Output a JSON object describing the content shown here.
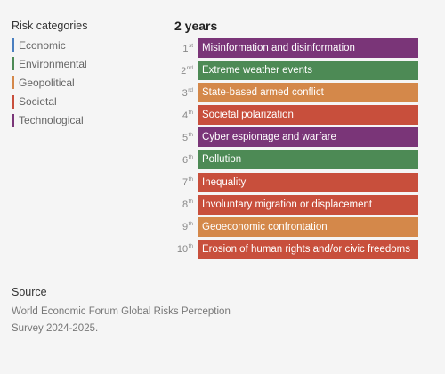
{
  "legend": {
    "title": "Risk categories",
    "items": [
      {
        "label": "Economic",
        "color": "#4a7fc0"
      },
      {
        "label": "Environmental",
        "color": "#4d8a55"
      },
      {
        "label": "Geopolitical",
        "color": "#d4884a"
      },
      {
        "label": "Societal",
        "color": "#c84f3c"
      },
      {
        "label": "Technological",
        "color": "#7a3578"
      }
    ]
  },
  "chart_data": {
    "type": "table",
    "title": "2 years",
    "rows": [
      {
        "rank": "1",
        "suffix": "st",
        "label": "Misinformation and disinformation",
        "category": "Technological"
      },
      {
        "rank": "2",
        "suffix": "nd",
        "label": "Extreme weather events",
        "category": "Environmental"
      },
      {
        "rank": "3",
        "suffix": "rd",
        "label": "State-based armed conflict",
        "category": "Geopolitical"
      },
      {
        "rank": "4",
        "suffix": "th",
        "label": "Societal polarization",
        "category": "Societal"
      },
      {
        "rank": "5",
        "suffix": "th",
        "label": "Cyber espionage and warfare",
        "category": "Technological"
      },
      {
        "rank": "6",
        "suffix": "th",
        "label": "Pollution",
        "category": "Environmental"
      },
      {
        "rank": "7",
        "suffix": "th",
        "label": "Inequality",
        "category": "Societal"
      },
      {
        "rank": "8",
        "suffix": "th",
        "label": "Involuntary migration or displacement",
        "category": "Societal"
      },
      {
        "rank": "9",
        "suffix": "th",
        "label": "Geoeconomic confrontation",
        "category": "Geopolitical"
      },
      {
        "rank": "10",
        "suffix": "th",
        "label": "Erosion of human rights and/or civic freedoms",
        "category": "Societal"
      }
    ]
  },
  "source": {
    "title": "Source",
    "text": "World Economic Forum Global Risks Perception Survey 2024-2025."
  }
}
